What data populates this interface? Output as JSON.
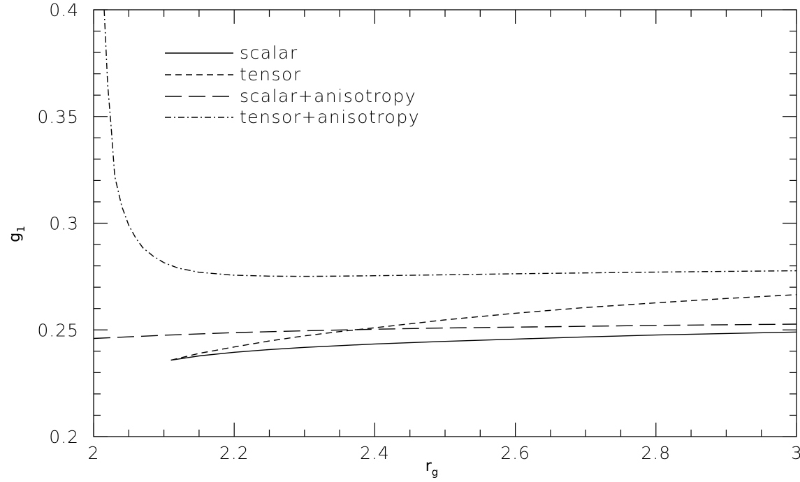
{
  "chart_data": {
    "type": "line",
    "title": "",
    "xlabel": "r",
    "xlabel_sub": "g",
    "ylabel": "g",
    "ylabel_sub": "1",
    "xlim": [
      2,
      3
    ],
    "ylim": [
      0.2,
      0.4
    ],
    "xticks": [
      {
        "value": 2,
        "label": "2"
      },
      {
        "value": 2.2,
        "label": "2.2"
      },
      {
        "value": 2.4,
        "label": "2.4"
      },
      {
        "value": 2.6,
        "label": "2.6"
      },
      {
        "value": 2.8,
        "label": "2.8"
      },
      {
        "value": 3,
        "label": "3"
      }
    ],
    "yticks": [
      {
        "value": 0.2,
        "label": "0.2"
      },
      {
        "value": 0.25,
        "label": "0.25"
      },
      {
        "value": 0.3,
        "label": "0.3"
      },
      {
        "value": 0.35,
        "label": "0.35"
      },
      {
        "value": 0.4,
        "label": "0.4"
      }
    ],
    "grid": false,
    "legend_position": "top-left",
    "series": [
      {
        "name": "scalar",
        "style": "solid",
        "color": "#000000",
        "x": [
          2.11,
          2.15,
          2.2,
          2.25,
          2.3,
          2.4,
          2.5,
          2.6,
          2.7,
          2.8,
          2.9,
          3.0
        ],
        "y": [
          0.2358,
          0.2378,
          0.2395,
          0.2408,
          0.2418,
          0.2434,
          0.2446,
          0.2457,
          0.2467,
          0.2476,
          0.2483,
          0.249
        ]
      },
      {
        "name": "tensor",
        "style": "dashed",
        "color": "#000000",
        "x": [
          2.11,
          2.15,
          2.2,
          2.25,
          2.3,
          2.35,
          2.4,
          2.5,
          2.6,
          2.7,
          2.8,
          2.9,
          3.0
        ],
        "y": [
          0.2358,
          0.239,
          0.242,
          0.2448,
          0.2472,
          0.2492,
          0.251,
          0.2547,
          0.2578,
          0.2605,
          0.2627,
          0.2647,
          0.2665
        ]
      },
      {
        "name": "scalar+anisotropy",
        "style": "long-dashed",
        "color": "#000000",
        "x": [
          2.0,
          2.1,
          2.2,
          2.3,
          2.4,
          2.5,
          2.6,
          2.7,
          2.8,
          2.9,
          3.0
        ],
        "y": [
          0.246,
          0.2475,
          0.2487,
          0.2496,
          0.2503,
          0.2509,
          0.2513,
          0.2517,
          0.2521,
          0.2524,
          0.2527
        ]
      },
      {
        "name": "tensor+anisotropy",
        "style": "dash-dot",
        "color": "#000000",
        "x": [
          2.015,
          2.02,
          2.025,
          2.03,
          2.04,
          2.05,
          2.06,
          2.07,
          2.085,
          2.1,
          2.12,
          2.15,
          2.2,
          2.25,
          2.3,
          2.35,
          2.4,
          2.5,
          2.6,
          2.7,
          2.8,
          2.9,
          3.0
        ],
        "y": [
          0.4,
          0.365,
          0.345,
          0.322,
          0.308,
          0.299,
          0.293,
          0.2885,
          0.2845,
          0.2815,
          0.279,
          0.277,
          0.2756,
          0.2752,
          0.2751,
          0.2752,
          0.2754,
          0.2758,
          0.2763,
          0.2767,
          0.2771,
          0.2774,
          0.2777
        ]
      }
    ]
  }
}
